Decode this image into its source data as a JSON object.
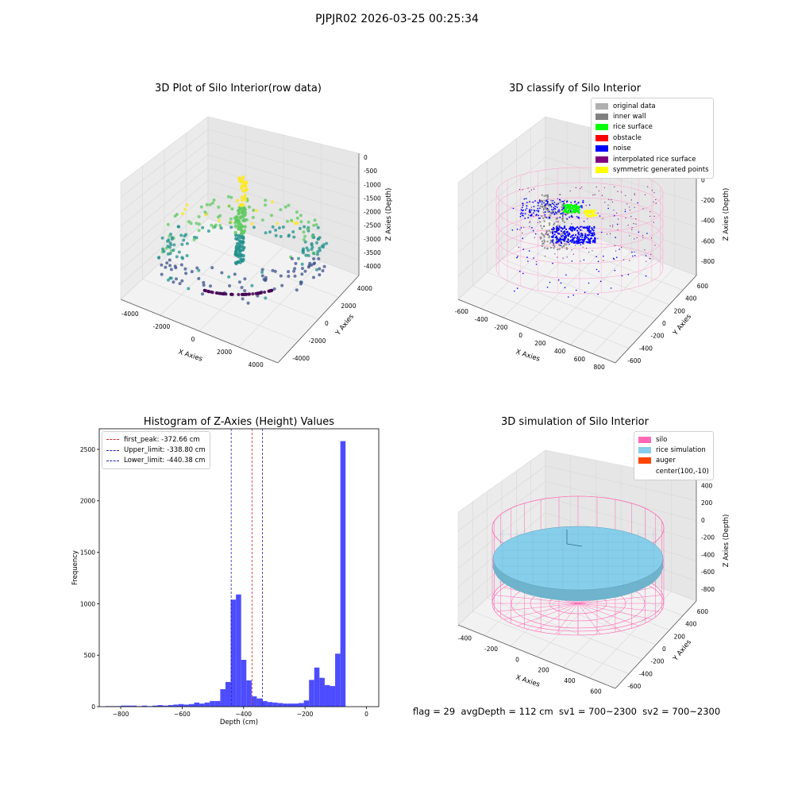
{
  "suptitle": "PJPJR02 2026-03-25 00:25:34",
  "footer": "flag = 29  avgDepth = 112 cm  sv1 = 700~2300  sv2 = 700~2300",
  "colors": {
    "hist_bar": "#4d4dff",
    "first_peak": "#d62728",
    "limits": "#1f1fb4",
    "silo": "#ff69b4",
    "rice_sim": "#87ceeb",
    "auger": "#ff4500"
  },
  "chart_data": [
    {
      "type": "scatter3d",
      "title": "3D Plot of Silo Interior(row data)",
      "xlabel": "X Axies",
      "ylabel": "Y Axies",
      "zlabel": "Z Axies (Depth)",
      "x_ticks": [
        "-4000",
        "-2000",
        "0",
        "2000",
        "4000"
      ],
      "y_ticks": [
        "-4000",
        "-2000",
        "0",
        "2000",
        "4000"
      ],
      "z_ticks": [
        "0",
        "-500",
        "-1000",
        "-1500",
        "-2000",
        "-2500",
        "-3000",
        "-3500",
        "-4000"
      ],
      "colormap": "viridis"
    },
    {
      "type": "scatter3d",
      "title": "3D classify of Silo Interior",
      "xlabel": "X Axies",
      "ylabel": "Y Axies",
      "zlabel": "Z Axies (Depth)",
      "x_ticks": [
        "-600",
        "-400",
        "-200",
        "0",
        "200",
        "400",
        "600",
        "800"
      ],
      "y_ticks": [
        "-600",
        "-400",
        "-200",
        "0",
        "200",
        "400",
        "600"
      ],
      "z_ticks": [
        "200",
        "0",
        "-200",
        "-400",
        "-600",
        "-800"
      ],
      "legend": [
        {
          "label": "original data",
          "color": "#b0b0b0"
        },
        {
          "label": "inner wall",
          "color": "#808080"
        },
        {
          "label": "rice surface",
          "color": "#00ff00"
        },
        {
          "label": "obstacle",
          "color": "#ff0000"
        },
        {
          "label": "noise",
          "color": "#0000ff"
        },
        {
          "label": "interpolated rice surface",
          "color": "#800080"
        },
        {
          "label": "symmetric generated points",
          "color": "#ffff00"
        }
      ]
    },
    {
      "type": "bar",
      "title": "Histogram of Z-Axies (Height) Values",
      "xlabel": "Depth (cm)",
      "ylabel": "Frequency",
      "xlim": [
        -870,
        40
      ],
      "ylim": [
        0,
        2700
      ],
      "x_ticks": [
        -800,
        -600,
        -400,
        -200,
        0
      ],
      "y_ticks": [
        0,
        500,
        1000,
        1500,
        2000,
        2500
      ],
      "bin_start": -850,
      "bin_width": 17,
      "values": [
        5,
        5,
        5,
        10,
        10,
        10,
        5,
        10,
        5,
        10,
        15,
        10,
        15,
        20,
        25,
        20,
        25,
        40,
        30,
        40,
        55,
        55,
        170,
        240,
        1040,
        1090,
        455,
        255,
        100,
        80,
        55,
        45,
        40,
        35,
        30,
        30,
        30,
        35,
        60,
        260,
        380,
        280,
        210,
        200,
        515,
        2580
      ],
      "vlines": [
        {
          "label": "first_peak: -372.66 cm",
          "x": -372.66,
          "color": "#d62728"
        },
        {
          "label": "Upper_limit: -338.80 cm",
          "x": -338.8,
          "color": "#1f1fb4"
        },
        {
          "label": "Lower_limit: -440.38 cm",
          "x": -440.38,
          "color": "#1f1fb4"
        }
      ]
    },
    {
      "type": "surface3d",
      "title": "3D simulation of Silo Interior",
      "xlabel": "X Axies",
      "ylabel": "Y Axies",
      "zlabel": "Z Axies (Depth)",
      "x_ticks": [
        "-400",
        "-200",
        "0",
        "200",
        "400",
        "600"
      ],
      "y_ticks": [
        "-600",
        "-400",
        "-200",
        "0",
        "200",
        "400",
        "600"
      ],
      "z_ticks": [
        "400",
        "200",
        "0",
        "-200",
        "-400",
        "-600",
        "-800"
      ],
      "legend": [
        {
          "label": "silo",
          "color": "#ff69b4"
        },
        {
          "label": "rice simulation",
          "color": "#87ceeb"
        },
        {
          "label": "auger",
          "color": "#ff4500"
        },
        {
          "label": "center(100,-10)",
          "color": ""
        }
      ]
    }
  ]
}
